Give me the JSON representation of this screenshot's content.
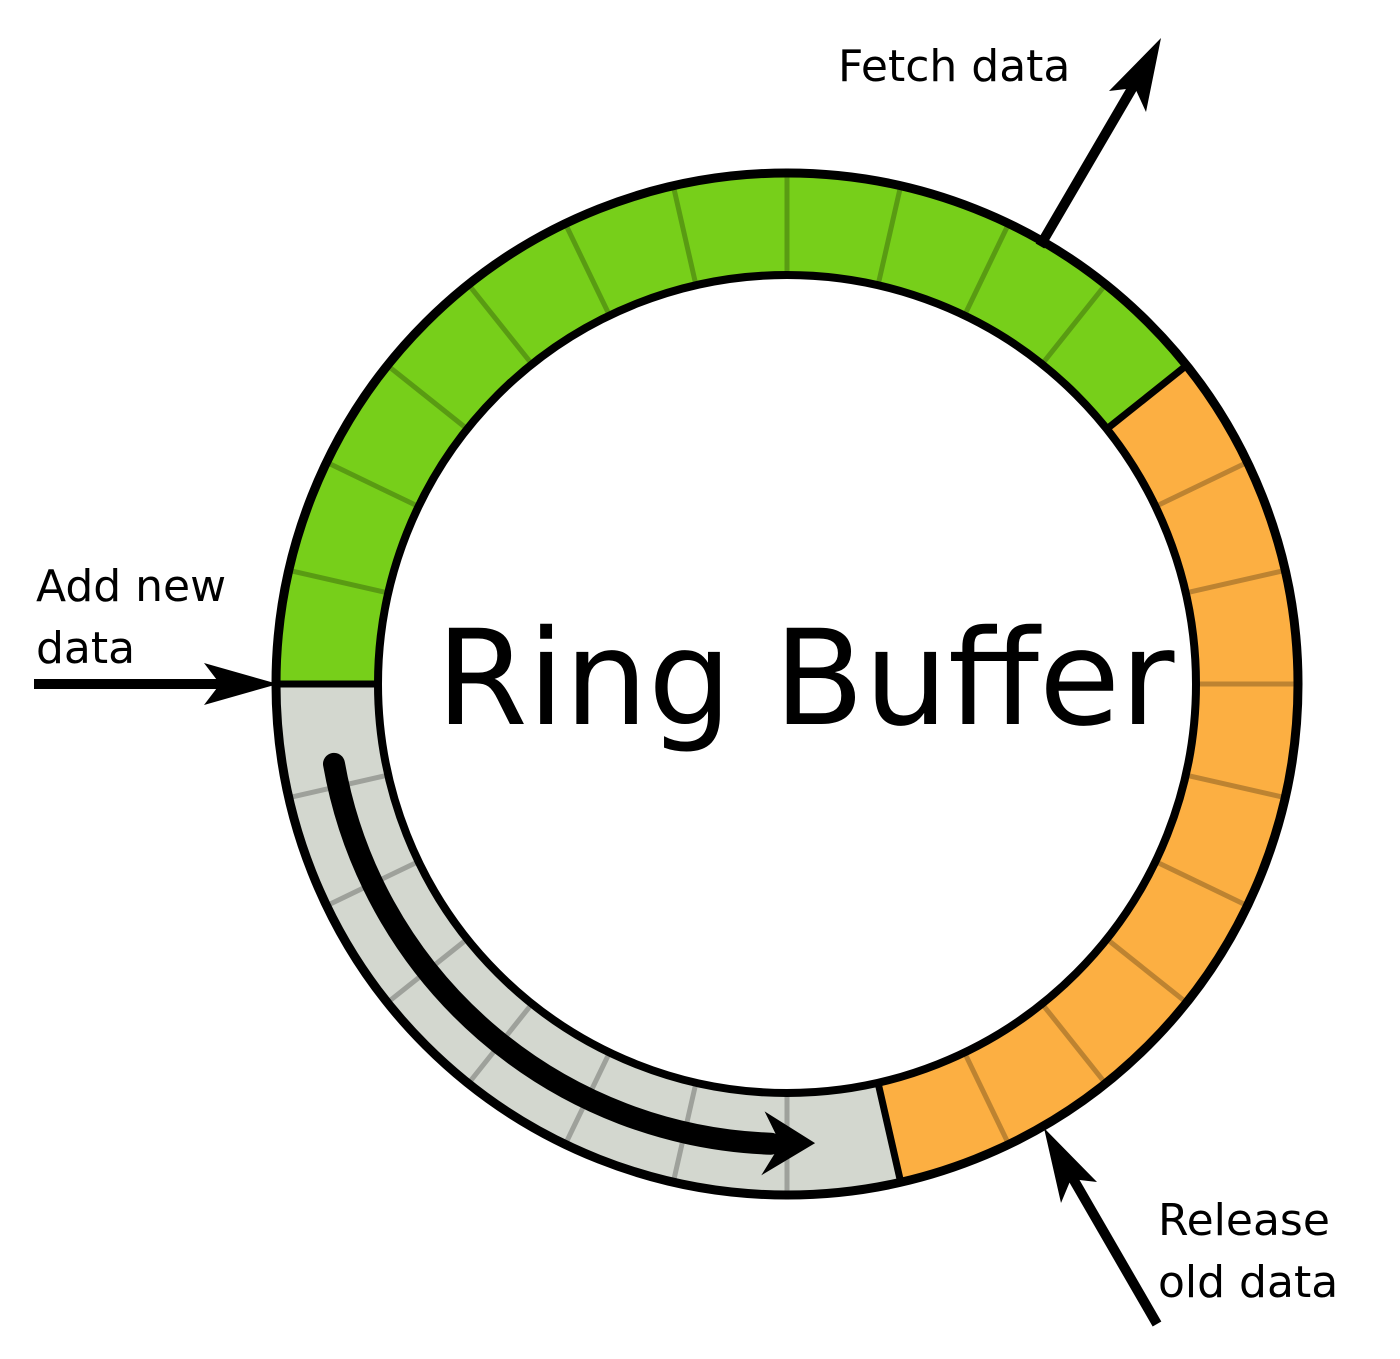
{
  "title": "Ring Buffer",
  "labels": {
    "fetch": "Fetch data",
    "add_line1": "Add new",
    "add_line2": "data",
    "release_line1": "Release",
    "release_line2": "old data"
  },
  "buffer": {
    "segment_count": 28,
    "states": [
      "empty",
      "empty",
      "empty",
      "empty",
      "empty",
      "empty",
      "empty",
      "empty",
      "queued",
      "queued",
      "queued",
      "queued",
      "queued",
      "queued",
      "queued",
      "queued",
      "queued",
      "filled",
      "filled",
      "filled",
      "filled",
      "filled",
      "filled",
      "filled",
      "filled",
      "filled",
      "filled",
      "filled"
    ]
  },
  "colors": {
    "filled": "#77cf1a",
    "queued": "#fcaf42",
    "empty": "#d3d7cf",
    "outline": "#000000",
    "divider": "rgba(0,0,0,0.25)"
  }
}
